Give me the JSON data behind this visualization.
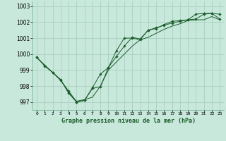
{
  "xlabel": "Graphe pression niveau de la mer (hPa)",
  "background_color": "#c8e8dc",
  "grid_color": "#a8cfc0",
  "line_color": "#1a5c2a",
  "marker_color": "#1a5c2a",
  "ylim": [
    996.5,
    1003.3
  ],
  "xlim": [
    -0.5,
    23.5
  ],
  "yticks": [
    997,
    998,
    999,
    1000,
    1001,
    1002,
    1003
  ],
  "xtick_labels": [
    "0",
    "1",
    "2",
    "3",
    "4",
    "5",
    "6",
    "7",
    "8",
    "9",
    "10",
    "11",
    "12",
    "13",
    "14",
    "15",
    "16",
    "17",
    "18",
    "19",
    "20",
    "21",
    "22",
    "23"
  ],
  "series1_x": [
    0,
    1,
    2,
    3,
    4,
    5,
    6,
    7,
    8,
    9,
    10,
    11,
    12,
    13,
    14,
    15,
    16,
    17,
    18,
    19,
    20,
    21,
    22,
    23
  ],
  "series1_y": [
    999.8,
    999.3,
    998.85,
    998.4,
    997.55,
    997.0,
    997.1,
    997.85,
    997.95,
    999.15,
    999.85,
    1000.5,
    1001.05,
    1000.95,
    1001.5,
    1001.65,
    1001.8,
    1001.95,
    1002.05,
    1002.15,
    1002.2,
    1002.5,
    1002.55,
    1002.2
  ],
  "series2_x": [
    0,
    1,
    2,
    3,
    4,
    5,
    6,
    7,
    8,
    9,
    10,
    11,
    12,
    13,
    14,
    15,
    16,
    17,
    18,
    19,
    20,
    21,
    22,
    23
  ],
  "series2_y": [
    999.8,
    999.25,
    998.85,
    998.35,
    997.7,
    997.0,
    997.1,
    997.9,
    998.75,
    999.15,
    1000.2,
    1001.0,
    1001.0,
    1000.9,
    1001.5,
    1001.6,
    1001.85,
    1002.05,
    1002.1,
    1002.15,
    1002.5,
    1002.55,
    1002.55,
    1002.5
  ],
  "series3_x": [
    0,
    1,
    2,
    3,
    4,
    5,
    6,
    7,
    8,
    9,
    10,
    11,
    12,
    13,
    14,
    15,
    16,
    17,
    18,
    19,
    20,
    21,
    22,
    23
  ],
  "series3_y": [
    999.8,
    999.3,
    998.85,
    998.4,
    997.6,
    997.05,
    997.15,
    997.3,
    998.0,
    999.0,
    999.5,
    1000.0,
    1000.5,
    1000.9,
    1001.05,
    1001.3,
    1001.55,
    1001.75,
    1001.9,
    1002.1,
    1002.15,
    1002.15,
    1002.35,
    1002.15
  ]
}
